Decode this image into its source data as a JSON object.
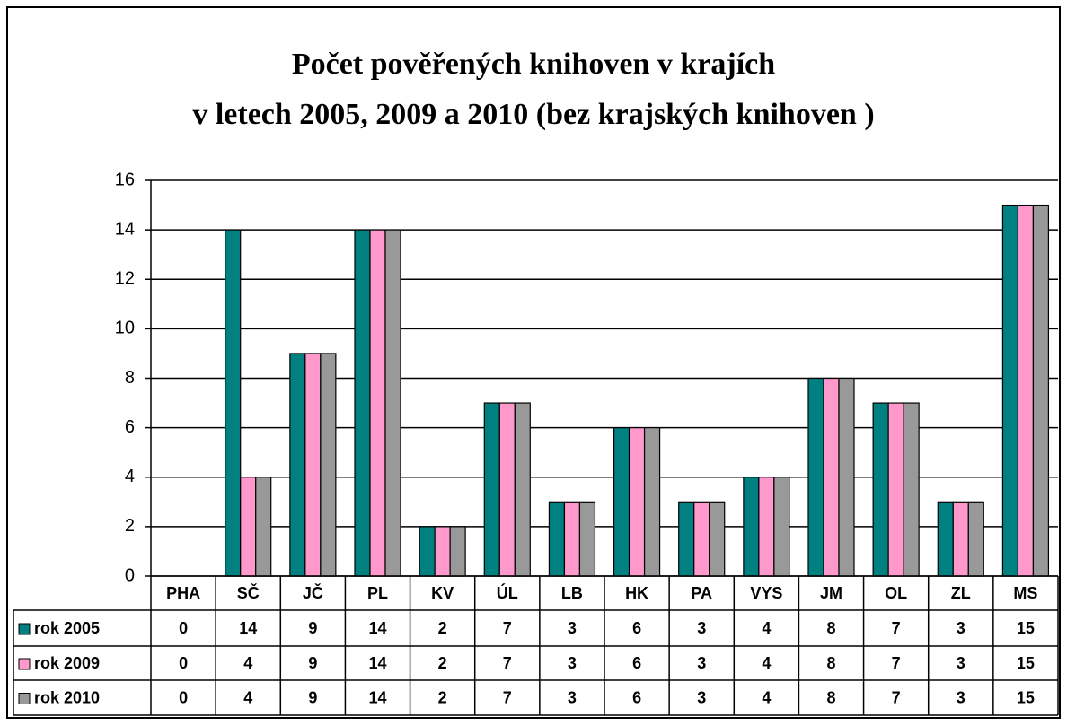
{
  "chart_data": {
    "type": "bar",
    "title": "Počet pověřených knihoven v krajích",
    "subtitle": "v letech 2005, 2009 a 2010 (bez krajských knihoven )",
    "categories": [
      "PHA",
      "SČ",
      "JČ",
      "PL",
      "KV",
      "ÚL",
      "LB",
      "HK",
      "PA",
      "VYS",
      "JM",
      "OL",
      "ZL",
      "MS"
    ],
    "series": [
      {
        "name": "rok 2005",
        "color": "#008080",
        "values": [
          0,
          14,
          9,
          14,
          2,
          7,
          3,
          6,
          3,
          4,
          8,
          7,
          3,
          15
        ]
      },
      {
        "name": "rok 2009",
        "color": "#ff99cc",
        "values": [
          0,
          4,
          9,
          14,
          2,
          7,
          3,
          6,
          3,
          4,
          8,
          7,
          3,
          15
        ]
      },
      {
        "name": "rok 2010",
        "color": "#999999",
        "values": [
          0,
          4,
          9,
          14,
          2,
          7,
          3,
          6,
          3,
          4,
          8,
          7,
          3,
          15
        ]
      }
    ],
    "ylim": [
      0,
      16
    ],
    "yticks": [
      0,
      2,
      4,
      6,
      8,
      10,
      12,
      14,
      16
    ],
    "grid": true
  }
}
